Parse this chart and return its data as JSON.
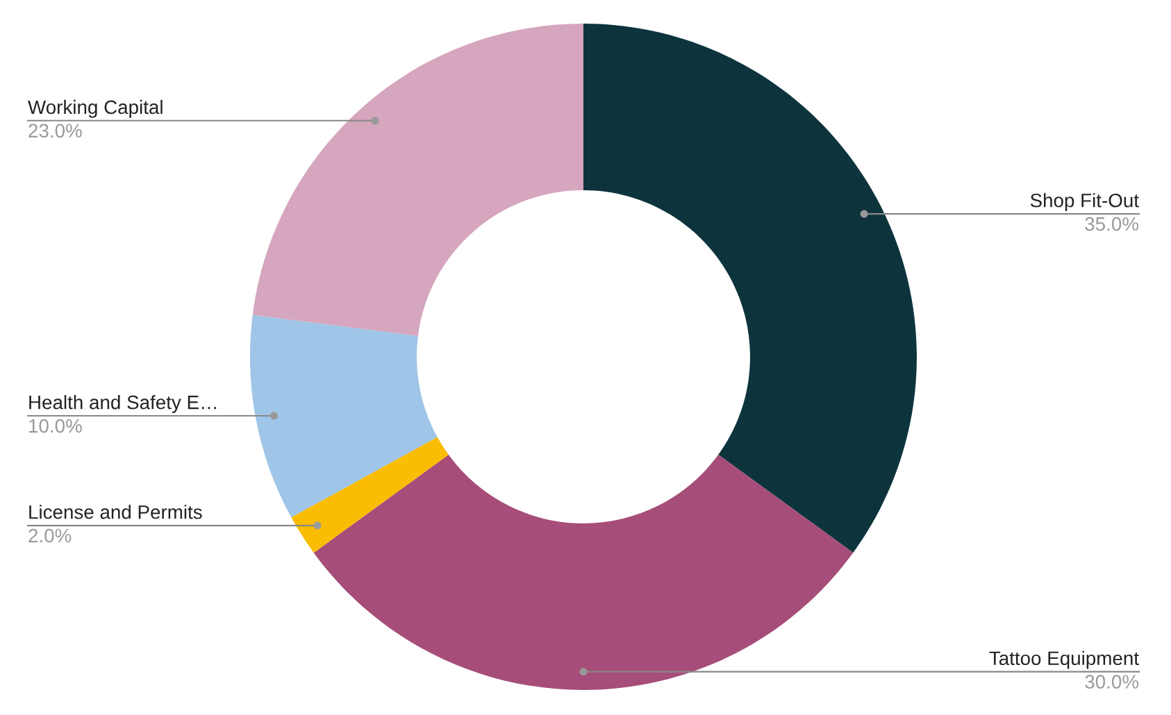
{
  "chart_data": {
    "type": "donut",
    "categories": [
      "Shop Fit-Out",
      "Tattoo Equipment",
      "License and Permits",
      "Health and Safety E…",
      "Working Capital"
    ],
    "values": [
      35,
      30,
      2,
      10,
      23
    ],
    "value_labels": [
      "35.0%",
      "30.0%",
      "2.0%",
      "10.0%",
      "23.0%"
    ],
    "colors": [
      "#0d343d",
      "#a64d79",
      "#fbbc04",
      "#9fc5e8",
      "#d5a6bd"
    ],
    "legend": false
  }
}
